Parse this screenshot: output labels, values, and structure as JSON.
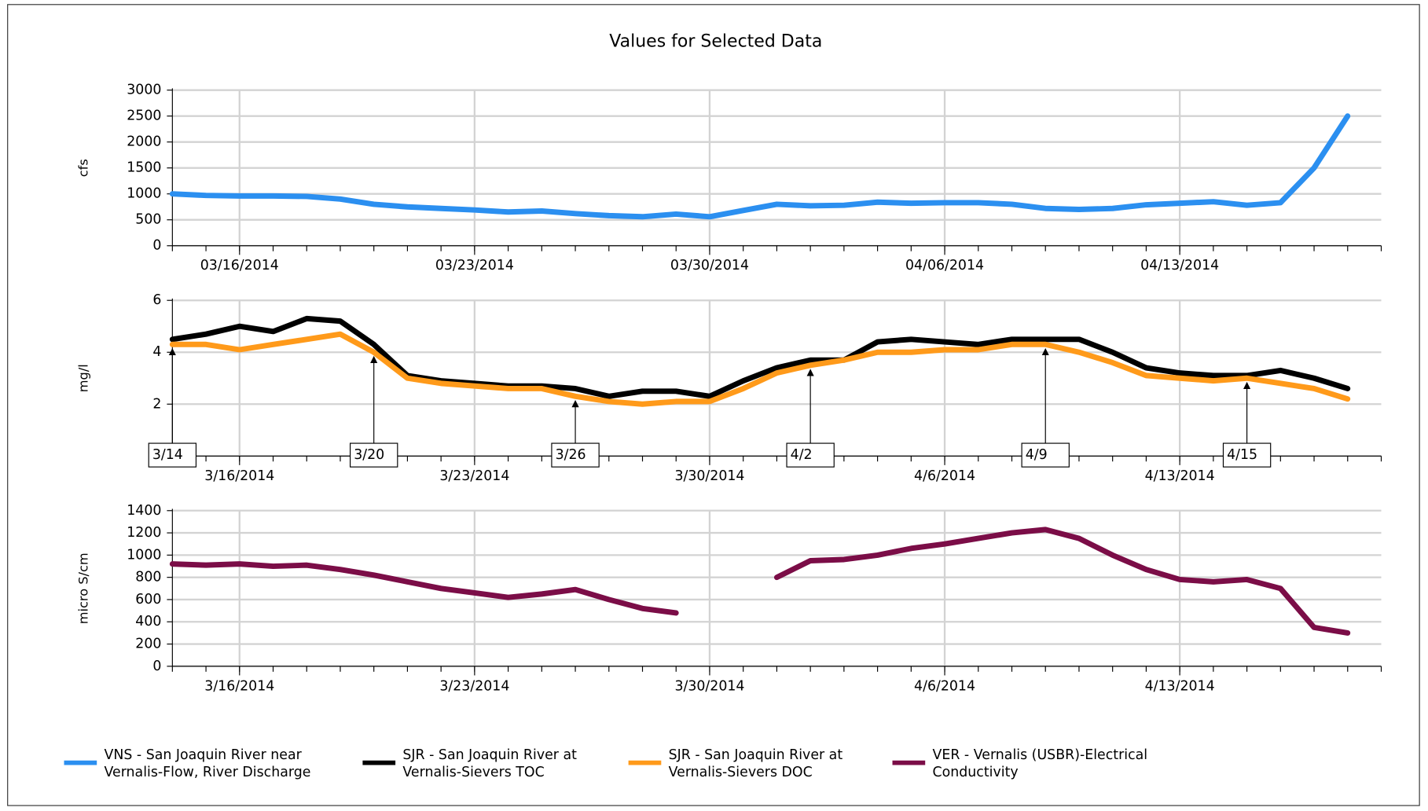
{
  "chart_data": [
    {
      "type": "line",
      "title": "Values for Selected Data",
      "y_label": "cfs",
      "x": [
        "03/14/2014",
        "03/15/2014",
        "03/16/2014",
        "03/17/2014",
        "03/18/2014",
        "03/19/2014",
        "03/20/2014",
        "03/21/2014",
        "03/22/2014",
        "03/23/2014",
        "03/24/2014",
        "03/25/2014",
        "03/26/2014",
        "03/27/2014",
        "03/28/2014",
        "03/29/2014",
        "03/30/2014",
        "03/31/2014",
        "04/01/2014",
        "04/02/2014",
        "04/03/2014",
        "04/04/2014",
        "04/05/2014",
        "04/06/2014",
        "04/07/2014",
        "04/08/2014",
        "04/09/2014",
        "04/10/2014",
        "04/11/2014",
        "04/12/2014",
        "04/13/2014",
        "04/14/2014",
        "04/15/2014",
        "04/16/2014",
        "04/17/2014",
        "04/18/2014"
      ],
      "series": [
        {
          "name": "VNS - San Joaquin River near Vernalis-Flow, River Discharge",
          "color": "#2b8ff0",
          "values": [
            1000,
            970,
            960,
            960,
            950,
            900,
            800,
            750,
            720,
            690,
            650,
            670,
            620,
            580,
            560,
            610,
            560,
            680,
            800,
            770,
            780,
            840,
            820,
            830,
            830,
            800,
            720,
            700,
            720,
            790,
            820,
            850,
            780,
            830,
            1500,
            2500
          ]
        }
      ],
      "xlim": [
        "03/14/2014",
        "04/19/2014"
      ],
      "xticks": [
        "03/16/2014",
        "03/23/2014",
        "03/30/2014",
        "04/06/2014",
        "04/13/2014"
      ],
      "ylim": [
        0,
        3000
      ],
      "yticks": [
        0,
        500,
        1000,
        1500,
        2000,
        2500,
        3000
      ],
      "grid": true
    },
    {
      "type": "line",
      "y_label": "mg/l",
      "x": [
        "03/14/2014",
        "03/15/2014",
        "03/16/2014",
        "03/17/2014",
        "03/18/2014",
        "03/19/2014",
        "03/20/2014",
        "03/21/2014",
        "03/22/2014",
        "03/23/2014",
        "03/24/2014",
        "03/25/2014",
        "03/26/2014",
        "03/27/2014",
        "03/28/2014",
        "03/29/2014",
        "03/30/2014",
        "03/31/2014",
        "04/01/2014",
        "04/02/2014",
        "04/03/2014",
        "04/04/2014",
        "04/05/2014",
        "04/06/2014",
        "04/07/2014",
        "04/08/2014",
        "04/09/2014",
        "04/10/2014",
        "04/11/2014",
        "04/12/2014",
        "04/13/2014",
        "04/14/2014",
        "04/15/2014",
        "04/16/2014",
        "04/17/2014",
        "04/18/2014"
      ],
      "series": [
        {
          "name": "SJR - San Joaquin River at Vernalis-Sievers TOC",
          "color": "#000000",
          "values": [
            4.5,
            4.7,
            5.0,
            4.8,
            5.3,
            5.2,
            4.3,
            3.1,
            2.9,
            2.8,
            2.7,
            2.7,
            2.6,
            2.3,
            2.5,
            2.5,
            2.3,
            2.9,
            3.4,
            3.7,
            3.7,
            4.4,
            4.5,
            4.4,
            4.3,
            4.5,
            4.5,
            4.5,
            4.0,
            3.4,
            3.2,
            3.1,
            3.1,
            3.3,
            3.0,
            2.6
          ]
        },
        {
          "name": "SJR - San Joaquin River at Vernalis-Sievers DOC",
          "color": "#ff9a1a",
          "values": [
            4.3,
            4.3,
            4.1,
            4.3,
            4.5,
            4.7,
            4.0,
            3.0,
            2.8,
            2.7,
            2.6,
            2.6,
            2.3,
            2.1,
            2.0,
            2.1,
            2.1,
            2.6,
            3.2,
            3.5,
            3.7,
            4.0,
            4.0,
            4.1,
            4.1,
            4.3,
            4.3,
            4.0,
            3.6,
            3.1,
            3.0,
            2.9,
            3.0,
            2.8,
            2.6,
            2.2
          ]
        }
      ],
      "annotations": [
        {
          "text": "3/14",
          "x": "03/14/2014"
        },
        {
          "text": "3/20",
          "x": "03/20/2014"
        },
        {
          "text": "3/26",
          "x": "03/26/2014"
        },
        {
          "text": "4/2",
          "x": "04/02/2014"
        },
        {
          "text": "4/9",
          "x": "04/09/2014"
        },
        {
          "text": "4/15",
          "x": "04/15/2014"
        }
      ],
      "xlim": [
        "03/14/2014",
        "04/19/2014"
      ],
      "xticks": [
        {
          "value": "03/16/2014",
          "label": "3/16/2014"
        },
        {
          "value": "03/23/2014",
          "label": "3/23/2014"
        },
        {
          "value": "03/30/2014",
          "label": "3/30/2014"
        },
        {
          "value": "04/06/2014",
          "label": "4/6/2014"
        },
        {
          "value": "04/13/2014",
          "label": "4/13/2014"
        }
      ],
      "ylim": [
        0,
        6
      ],
      "yticks": [
        0,
        2,
        4,
        6
      ],
      "grid": true
    },
    {
      "type": "line",
      "y_label": "micro S/cm",
      "x": [
        "03/14/2014",
        "03/15/2014",
        "03/16/2014",
        "03/17/2014",
        "03/18/2014",
        "03/19/2014",
        "03/20/2014",
        "03/21/2014",
        "03/22/2014",
        "03/23/2014",
        "03/24/2014",
        "03/25/2014",
        "03/26/2014",
        "03/27/2014",
        "03/28/2014",
        "03/29/2014",
        "03/30/2014",
        "03/31/2014",
        "04/01/2014",
        "04/02/2014",
        "04/03/2014",
        "04/04/2014",
        "04/05/2014",
        "04/06/2014",
        "04/07/2014",
        "04/08/2014",
        "04/09/2014",
        "04/10/2014",
        "04/11/2014",
        "04/12/2014",
        "04/13/2014",
        "04/14/2014",
        "04/15/2014",
        "04/16/2014",
        "04/17/2014",
        "04/18/2014"
      ],
      "series": [
        {
          "name": "VER - Vernalis (USBR)-Electrical Conductivity",
          "color": "#7b0d47",
          "values": [
            920,
            910,
            920,
            900,
            910,
            870,
            820,
            760,
            700,
            660,
            620,
            650,
            690,
            600,
            520,
            480,
            null,
            null,
            800,
            950,
            960,
            1000,
            1060,
            1100,
            1150,
            1200,
            1230,
            1150,
            1000,
            870,
            780,
            760,
            780,
            700,
            350,
            300
          ]
        }
      ],
      "xlim": [
        "03/14/2014",
        "04/19/2014"
      ],
      "xticks": [
        {
          "value": "03/16/2014",
          "label": "3/16/2014"
        },
        {
          "value": "03/23/2014",
          "label": "3/23/2014"
        },
        {
          "value": "03/30/2014",
          "label": "3/30/2014"
        },
        {
          "value": "04/06/2014",
          "label": "4/6/2014"
        },
        {
          "value": "04/13/2014",
          "label": "4/13/2014"
        }
      ],
      "ylim": [
        0,
        1400
      ],
      "yticks": [
        0,
        200,
        400,
        600,
        800,
        1000,
        1200,
        1400
      ],
      "grid": true
    }
  ]
}
